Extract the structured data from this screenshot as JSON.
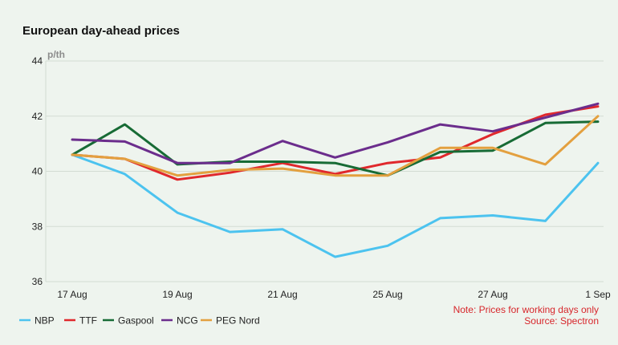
{
  "chart_data": {
    "type": "line",
    "title": "European day-ahead prices",
    "ylabel": "p/th",
    "ylim": [
      36,
      44
    ],
    "yticks": [
      36,
      38,
      40,
      42,
      44
    ],
    "x_tick_labels": [
      "17 Aug",
      "19 Aug",
      "21 Aug",
      "25 Aug",
      "27 Aug",
      "1 Sep"
    ],
    "x_tick_positions": [
      0,
      2,
      4,
      6,
      8,
      10
    ],
    "grid": "horizontal",
    "legend_position": "bottom-left",
    "series": [
      {
        "name": "NBP",
        "color": "#4cc3ef",
        "values": [
          40.6,
          39.9,
          38.5,
          37.8,
          37.9,
          36.9,
          37.3,
          38.3,
          38.4,
          38.2,
          40.3
        ]
      },
      {
        "name": "TTF",
        "color": "#e0282c",
        "values": [
          40.6,
          40.45,
          39.7,
          39.95,
          40.3,
          39.9,
          40.3,
          40.5,
          41.35,
          42.05,
          42.35
        ]
      },
      {
        "name": "Gaspool",
        "color": "#176b35",
        "values": [
          40.6,
          41.7,
          40.25,
          40.35,
          40.35,
          40.3,
          39.85,
          40.7,
          40.75,
          41.75,
          41.8
        ]
      },
      {
        "name": "NCG",
        "color": "#6b2d8c",
        "values": [
          41.15,
          41.08,
          40.3,
          40.3,
          41.1,
          40.5,
          41.05,
          41.7,
          41.45,
          41.95,
          42.45
        ]
      },
      {
        "name": "PEG Nord",
        "color": "#e3a03f",
        "values": [
          40.6,
          40.45,
          39.85,
          40.05,
          40.1,
          39.85,
          39.85,
          40.85,
          40.85,
          40.25,
          42.0
        ]
      }
    ]
  },
  "notes": {
    "line1": "Note: Prices for working days only",
    "line2": "Source: Spectron"
  }
}
